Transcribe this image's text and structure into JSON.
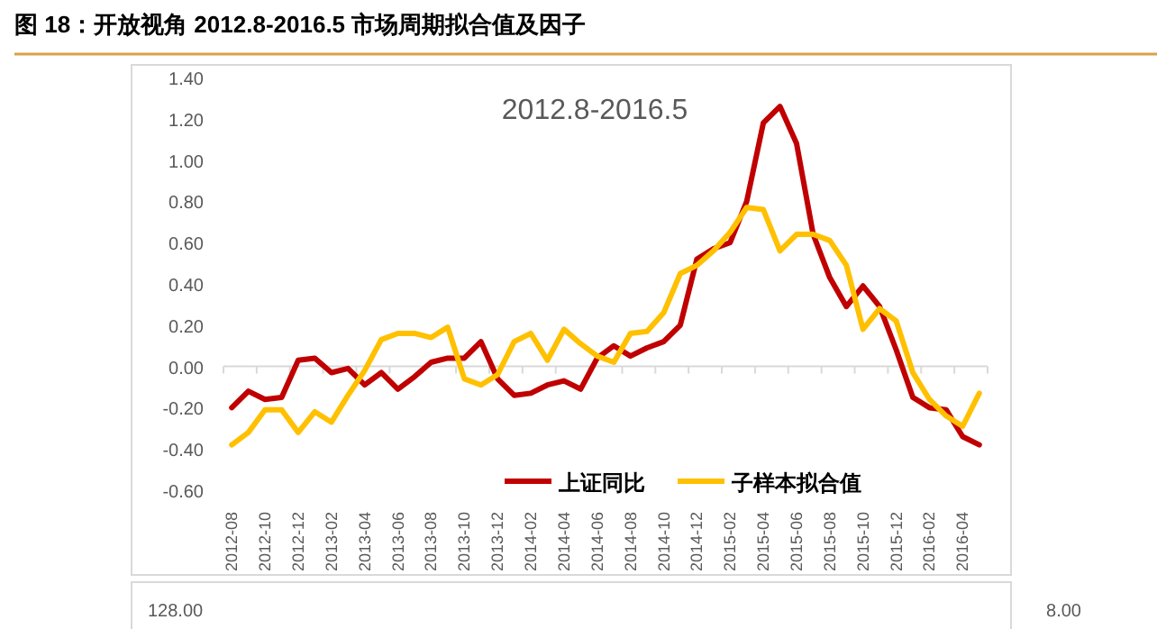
{
  "chart_data": {
    "type": "line",
    "title": "图 18：开放视角 2012.8-2016.5 市场周期拟合值及因子",
    "subtitle": "2012.8-2016.5",
    "categories": [
      "2012-08",
      null,
      "2012-10",
      null,
      "2012-12",
      null,
      "2013-02",
      null,
      "2013-04",
      null,
      "2013-06",
      null,
      "2013-08",
      null,
      "2013-10",
      null,
      "2013-12",
      null,
      "2014-02",
      null,
      "2014-04",
      null,
      "2014-06",
      null,
      "2014-08",
      null,
      "2014-10",
      null,
      "2014-12",
      null,
      "2015-02",
      null,
      "2015-04",
      null,
      "2015-06",
      null,
      "2015-08",
      null,
      "2015-10",
      null,
      "2015-12",
      null,
      "2016-02",
      null,
      "2016-04",
      null
    ],
    "series": [
      {
        "name": "上证同比",
        "color": "#c00000",
        "values": [
          -0.2,
          -0.12,
          -0.16,
          -0.15,
          0.03,
          0.04,
          -0.03,
          -0.01,
          -0.09,
          -0.03,
          -0.11,
          -0.05,
          0.02,
          0.04,
          0.04,
          0.12,
          -0.06,
          -0.14,
          -0.13,
          -0.09,
          -0.07,
          -0.11,
          0.04,
          0.1,
          0.05,
          0.09,
          0.12,
          0.2,
          0.52,
          0.57,
          0.6,
          0.8,
          1.18,
          1.26,
          1.08,
          0.64,
          0.43,
          0.29,
          0.39,
          0.29,
          0.08,
          -0.15,
          -0.2,
          -0.21,
          -0.34,
          -0.38
        ]
      },
      {
        "name": "子样本拟合值",
        "color": "#ffc000",
        "values": [
          -0.38,
          -0.32,
          -0.21,
          -0.21,
          -0.32,
          -0.22,
          -0.27,
          -0.14,
          -0.02,
          0.13,
          0.16,
          0.16,
          0.14,
          0.19,
          -0.06,
          -0.09,
          -0.04,
          0.12,
          0.16,
          0.03,
          0.18,
          0.11,
          0.05,
          0.02,
          0.16,
          0.17,
          0.26,
          0.45,
          0.49,
          0.56,
          0.65,
          0.77,
          0.76,
          0.56,
          0.64,
          0.64,
          0.61,
          0.49,
          0.18,
          0.28,
          0.22,
          -0.03,
          -0.16,
          -0.24,
          -0.29,
          -0.13
        ]
      }
    ],
    "ylim": [
      -0.6,
      1.4
    ],
    "yticks": [
      {
        "value": -0.6,
        "label": "-0.60"
      },
      {
        "value": -0.4,
        "label": "-0.40"
      },
      {
        "value": -0.2,
        "label": "-0.20"
      },
      {
        "value": 0,
        "label": "0.00"
      },
      {
        "value": 0.2,
        "label": "0.20"
      },
      {
        "value": 0.4,
        "label": "0.40"
      },
      {
        "value": 0.6,
        "label": "0.60"
      },
      {
        "value": 0.8,
        "label": "0.80"
      },
      {
        "value": 1.0,
        "label": "1.00"
      },
      {
        "value": 1.2,
        "label": "1.20"
      },
      {
        "value": 1.4,
        "label": "1.40"
      }
    ],
    "legend": "bottom",
    "annotations": [
      "128.00",
      "8.00"
    ]
  }
}
